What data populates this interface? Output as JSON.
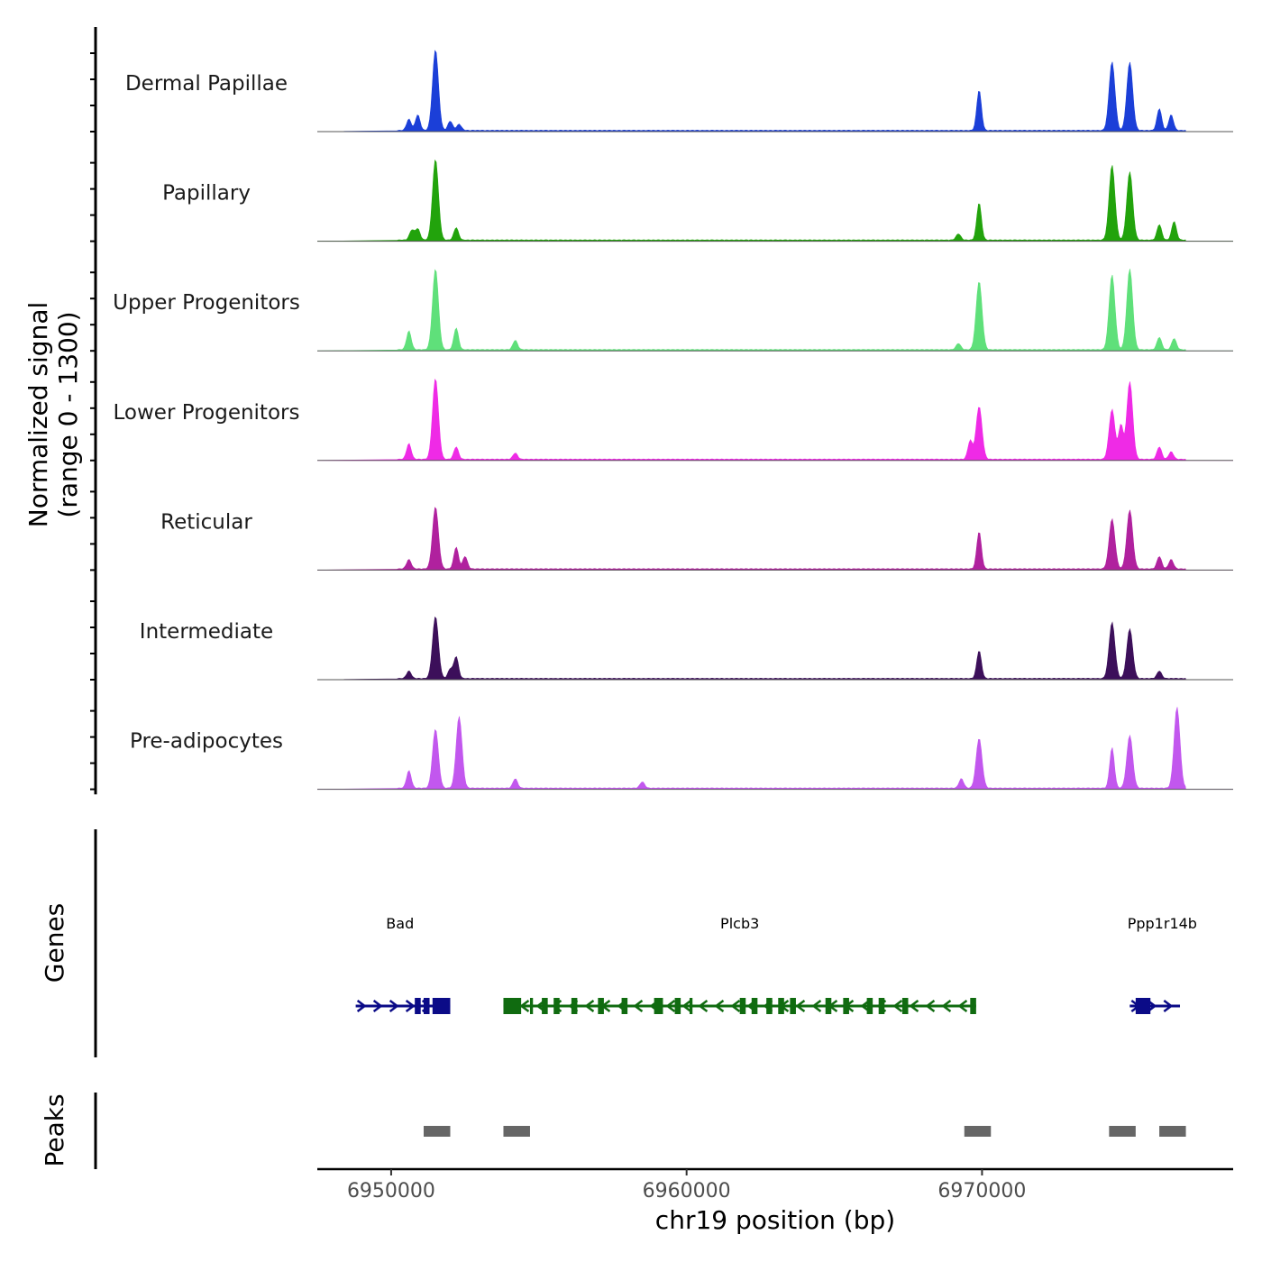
{
  "chart_data": {
    "type": "area",
    "title": "",
    "region": {
      "chrom": "chr19",
      "start": 6947500,
      "end": 6978500
    },
    "ylabel_line1": "Normalized signal",
    "ylabel_line2": "(range 0 - 1300)",
    "ylim": [
      0,
      1300
    ],
    "xlabel": "chr19 position (bp)",
    "x_ticks": [
      6950000,
      6960000,
      6970000
    ],
    "x_tick_labels": [
      "6950000",
      "6960000",
      "6970000"
    ],
    "series": [
      {
        "name": "Dermal Papillae",
        "color": "#1b3fd8",
        "peaks": [
          [
            6951500,
            1300
          ],
          [
            6950900,
            250
          ],
          [
            6950600,
            180
          ],
          [
            6952000,
            150
          ],
          [
            6952300,
            100
          ],
          [
            6969900,
            650
          ],
          [
            6974400,
            1100
          ],
          [
            6975000,
            1100
          ],
          [
            6976000,
            350
          ],
          [
            6976400,
            250
          ]
        ]
      },
      {
        "name": "Papillary",
        "color": "#22a30c",
        "peaks": [
          [
            6951500,
            1300
          ],
          [
            6950700,
            160
          ],
          [
            6950900,
            180
          ],
          [
            6952200,
            200
          ],
          [
            6969900,
            600
          ],
          [
            6969200,
            100
          ],
          [
            6974400,
            1200
          ],
          [
            6975000,
            1100
          ],
          [
            6976000,
            250
          ],
          [
            6976500,
            300
          ]
        ]
      },
      {
        "name": "Upper Progenitors",
        "color": "#5fe07a",
        "peaks": [
          [
            6951500,
            1300
          ],
          [
            6950600,
            300
          ],
          [
            6952200,
            350
          ],
          [
            6954200,
            150
          ],
          [
            6969900,
            1100
          ],
          [
            6969200,
            100
          ],
          [
            6974400,
            1200
          ],
          [
            6975000,
            1300
          ],
          [
            6976000,
            200
          ],
          [
            6976500,
            180
          ]
        ]
      },
      {
        "name": "Lower Progenitors",
        "color": "#ef2ae6",
        "peaks": [
          [
            6951500,
            1300
          ],
          [
            6950600,
            250
          ],
          [
            6952200,
            200
          ],
          [
            6954200,
            100
          ],
          [
            6969900,
            850
          ],
          [
            6969600,
            300
          ],
          [
            6974400,
            800
          ],
          [
            6974700,
            550
          ],
          [
            6975000,
            1250
          ],
          [
            6976000,
            200
          ],
          [
            6976400,
            120
          ]
        ]
      },
      {
        "name": "Reticular",
        "color": "#b0219e",
        "peaks": [
          [
            6951500,
            1000
          ],
          [
            6950600,
            150
          ],
          [
            6952200,
            350
          ],
          [
            6952500,
            200
          ],
          [
            6969900,
            600
          ],
          [
            6974400,
            800
          ],
          [
            6975000,
            950
          ],
          [
            6976000,
            200
          ],
          [
            6976400,
            150
          ]
        ]
      },
      {
        "name": "Intermediate",
        "color": "#3c0f5a",
        "peaks": [
          [
            6951500,
            1000
          ],
          [
            6950600,
            120
          ],
          [
            6952200,
            350
          ],
          [
            6952000,
            150
          ],
          [
            6969900,
            450
          ],
          [
            6974400,
            900
          ],
          [
            6975000,
            800
          ],
          [
            6976000,
            120
          ]
        ]
      },
      {
        "name": "Pre-adipocytes",
        "color": "#c257ee",
        "peaks": [
          [
            6951500,
            950
          ],
          [
            6952300,
            1150
          ],
          [
            6950600,
            280
          ],
          [
            6954200,
            150
          ],
          [
            6958500,
            100
          ],
          [
            6969900,
            800
          ],
          [
            6969300,
            150
          ],
          [
            6974400,
            650
          ],
          [
            6975000,
            850
          ],
          [
            6976600,
            1300
          ]
        ]
      }
    ],
    "genes_track_label": "Genes",
    "genes": [
      {
        "name": "Bad",
        "start": 6948800,
        "end": 6952000,
        "strand": "+",
        "color": "#0b0b87",
        "label_x": 6950300,
        "exons": [
          [
            6950800,
            6951000
          ],
          [
            6951100,
            6951300
          ],
          [
            6951400,
            6952000
          ]
        ]
      },
      {
        "name": "Plcb3",
        "start": 6953800,
        "end": 6969800,
        "strand": "-",
        "color": "#106b10",
        "label_x": 6961800,
        "exons": [
          [
            6953800,
            6954400
          ],
          [
            6954700,
            6954800
          ],
          [
            6955100,
            6955300
          ],
          [
            6955500,
            6955700
          ],
          [
            6956100,
            6956300
          ],
          [
            6957000,
            6957200
          ],
          [
            6957800,
            6958000
          ],
          [
            6958900,
            6959200
          ],
          [
            6959600,
            6959800
          ],
          [
            6960100,
            6960200
          ],
          [
            6961800,
            6962000
          ],
          [
            6962200,
            6962400
          ],
          [
            6962700,
            6962900
          ],
          [
            6963100,
            6963300
          ],
          [
            6963500,
            6963700
          ],
          [
            6964700,
            6964900
          ],
          [
            6965300,
            6965500
          ],
          [
            6966100,
            6966300
          ],
          [
            6966500,
            6966700
          ],
          [
            6967300,
            6967500
          ],
          [
            6969600,
            6969800
          ]
        ]
      },
      {
        "name": "Ppp1r14b",
        "start": 6975000,
        "end": 6976700,
        "strand": "+",
        "color": "#0b0b87",
        "label_x": 6976100,
        "exons": [
          [
            6975200,
            6975700
          ]
        ]
      }
    ],
    "peaks_track_label": "Peaks",
    "peak_regions": [
      [
        6951100,
        6952000
      ],
      [
        6953800,
        6954700
      ],
      [
        6969400,
        6970300
      ],
      [
        6974300,
        6975200
      ],
      [
        6976000,
        6976900
      ]
    ]
  }
}
